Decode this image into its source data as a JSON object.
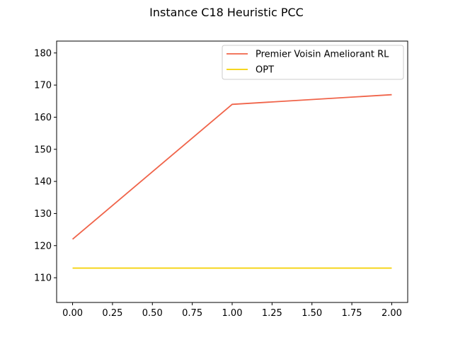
{
  "chart_data": {
    "type": "line",
    "title": "Instance C18 Heuristic PCC",
    "xlabel": "",
    "ylabel": "",
    "x": [
      0,
      1,
      2
    ],
    "series": [
      {
        "name": "Premier Voisin Ameliorant RL",
        "values": [
          122,
          164,
          167
        ],
        "color": "#f0644a"
      },
      {
        "name": "OPT",
        "values": [
          113,
          113,
          113
        ],
        "color": "#f5d000"
      }
    ],
    "xlim": [
      -0.1,
      2.1
    ],
    "ylim": [
      102.3,
      183.7
    ],
    "xticks": [
      0.0,
      0.25,
      0.5,
      0.75,
      1.0,
      1.25,
      1.5,
      1.75,
      2.0
    ],
    "xtick_labels": [
      "0.00",
      "0.25",
      "0.50",
      "0.75",
      "1.00",
      "1.25",
      "1.50",
      "1.75",
      "2.00"
    ],
    "yticks": [
      110,
      120,
      130,
      140,
      150,
      160,
      170,
      180
    ],
    "ytick_labels": [
      "110",
      "120",
      "130",
      "140",
      "150",
      "160",
      "170",
      "180"
    ],
    "grid": false,
    "legend": "top-right"
  }
}
